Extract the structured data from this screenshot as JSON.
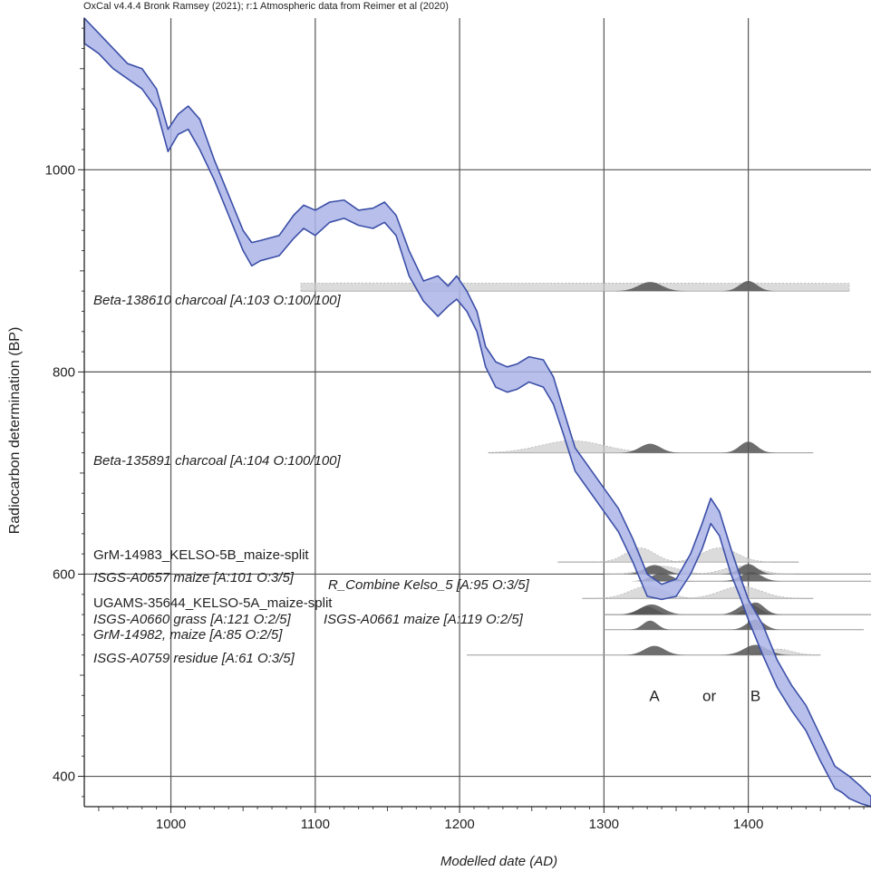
{
  "header": {
    "source_note": "OxCal v4.4.4 Bronk Ramsey (2021); r:1 Atmospheric data from Reimer et al (2020)"
  },
  "chart_data": {
    "type": "area",
    "title": "",
    "xlabel": "Modelled date (AD)",
    "ylabel": "Radiocarbon determination (BP)",
    "xlim": [
      940,
      1485
    ],
    "ylim": [
      370,
      1150
    ],
    "xticks": [
      1000,
      1100,
      1200,
      1300,
      1400
    ],
    "yticks": [
      400,
      600,
      800,
      1000
    ],
    "grid": true,
    "calibration_curve": {
      "x": [
        940,
        950,
        960,
        970,
        980,
        990,
        998,
        1005,
        1012,
        1020,
        1030,
        1040,
        1050,
        1056,
        1062,
        1075,
        1085,
        1092,
        1100,
        1110,
        1120,
        1130,
        1140,
        1148,
        1156,
        1165,
        1175,
        1185,
        1192,
        1198,
        1205,
        1212,
        1218,
        1225,
        1233,
        1240,
        1248,
        1258,
        1265,
        1272,
        1280,
        1290,
        1300,
        1310,
        1320,
        1330,
        1340,
        1350,
        1360,
        1368,
        1374,
        1380,
        1388,
        1395,
        1400,
        1410,
        1420,
        1430,
        1440,
        1450,
        1460,
        1465,
        1470,
        1478,
        1485
      ],
      "upper": [
        1150,
        1135,
        1120,
        1105,
        1100,
        1080,
        1040,
        1055,
        1063,
        1050,
        1010,
        975,
        940,
        928,
        930,
        935,
        955,
        965,
        960,
        968,
        970,
        960,
        962,
        968,
        955,
        920,
        890,
        895,
        885,
        895,
        880,
        860,
        825,
        810,
        805,
        808,
        815,
        812,
        795,
        762,
        725,
        705,
        685,
        665,
        635,
        600,
        590,
        595,
        620,
        650,
        675,
        662,
        625,
        595,
        575,
        550,
        515,
        490,
        470,
        440,
        410,
        405,
        400,
        390,
        380
      ],
      "lower": [
        1125,
        1115,
        1100,
        1090,
        1080,
        1060,
        1018,
        1035,
        1040,
        1020,
        990,
        955,
        920,
        905,
        910,
        915,
        932,
        942,
        935,
        948,
        952,
        945,
        942,
        948,
        935,
        895,
        870,
        855,
        865,
        872,
        860,
        840,
        805,
        785,
        780,
        783,
        790,
        785,
        768,
        738,
        702,
        682,
        662,
        642,
        612,
        578,
        575,
        578,
        600,
        625,
        650,
        638,
        600,
        575,
        555,
        520,
        488,
        465,
        445,
        415,
        388,
        384,
        378,
        373,
        370
      ]
    },
    "samples": [
      {
        "label": "Beta-138610 charcoal [A:103 O:100/100]",
        "y": 880,
        "range": [
          1090,
          1470
        ],
        "wide_dist": [
          [
            1160,
            1220,
            8
          ]
        ],
        "peaks": [
          [
            1332,
            8,
            9
          ],
          [
            1400,
            6,
            10
          ]
        ]
      },
      {
        "label": "Beta-135891 charcoal [A:104 O:100/100]",
        "y": 720,
        "range": [
          1220,
          1445
        ],
        "wide_dist": [
          [
            1278,
            22,
            12
          ]
        ],
        "peaks": [
          [
            1332,
            7,
            9
          ],
          [
            1400,
            6,
            11
          ]
        ]
      },
      {
        "label": "GrM-14983_KELSO-5B_maize-split",
        "y": 612,
        "range": [
          1268,
          1435
        ],
        "wide_dist": [
          [
            1325,
            10,
            14
          ],
          [
            1380,
            12,
            14
          ]
        ],
        "peaks": []
      },
      {
        "label": "ISGS-A0657 maize [A:101 O:3/5]",
        "y": 600,
        "range": [
          1300,
          1485
        ],
        "wide_dist": [
          [
            1340,
            12,
            8
          ],
          [
            1395,
            12,
            8
          ]
        ],
        "peaks": [
          [
            1335,
            7,
            9
          ],
          [
            1400,
            6,
            10
          ]
        ]
      },
      {
        "label": "R_Combine Kelso_5 [A:95 O:3/5]",
        "y": 593,
        "range": [
          1325,
          1485
        ],
        "wide_dist": [],
        "peaks": [
          [
            1340,
            7,
            8
          ],
          [
            1402,
            7,
            9
          ]
        ]
      },
      {
        "label": "UGAMS-35644_KELSO-5A_maize-split",
        "y": 576,
        "range": [
          1285,
          1445
        ],
        "wide_dist": [
          [
            1330,
            12,
            12
          ],
          [
            1395,
            14,
            12
          ]
        ],
        "peaks": []
      },
      {
        "label": "ISGS-A0660 grass [A:121 O:2/5]",
        "y": 560,
        "range": [
          1300,
          1485
        ],
        "wide_dist": [],
        "peaks": [
          [
            1333,
            8,
            10
          ],
          [
            1400,
            7,
            11
          ]
        ]
      },
      {
        "label": "ISGS-A0661 maize [A:119 O:2/5]",
        "y": 560,
        "range": [
          1300,
          1485
        ],
        "wide_dist": [],
        "peaks": [
          [
            1330,
            6,
            8
          ],
          [
            1405,
            6,
            12
          ]
        ]
      },
      {
        "label": "GrM-14982, maize [A:85 O:2/5]",
        "y": 545,
        "range": [
          1300,
          1480
        ],
        "wide_dist": [],
        "peaks": [
          [
            1332,
            5,
            9
          ],
          [
            1405,
            6,
            10
          ]
        ]
      },
      {
        "label": "ISGS-A0759 residue [A:61 O:3/5]",
        "y": 520,
        "range": [
          1205,
          1450
        ],
        "wide_dist": [
          [
            1420,
            10,
            6
          ]
        ],
        "peaks": [
          [
            1335,
            7,
            9
          ],
          [
            1405,
            8,
            10
          ]
        ]
      }
    ],
    "annotations": [
      {
        "text": "A",
        "x": 1335,
        "y": 485
      },
      {
        "text": "or",
        "x": 1373,
        "y": 485
      },
      {
        "text": "B",
        "x": 1405,
        "y": 485
      }
    ],
    "colors": {
      "curve_fill": "#aab4e6",
      "curve_edge": "#3c4fa8",
      "grid": "#555555",
      "dist_dark": "#555555",
      "dist_light": "#cccccc",
      "baseline": "#999999"
    }
  }
}
